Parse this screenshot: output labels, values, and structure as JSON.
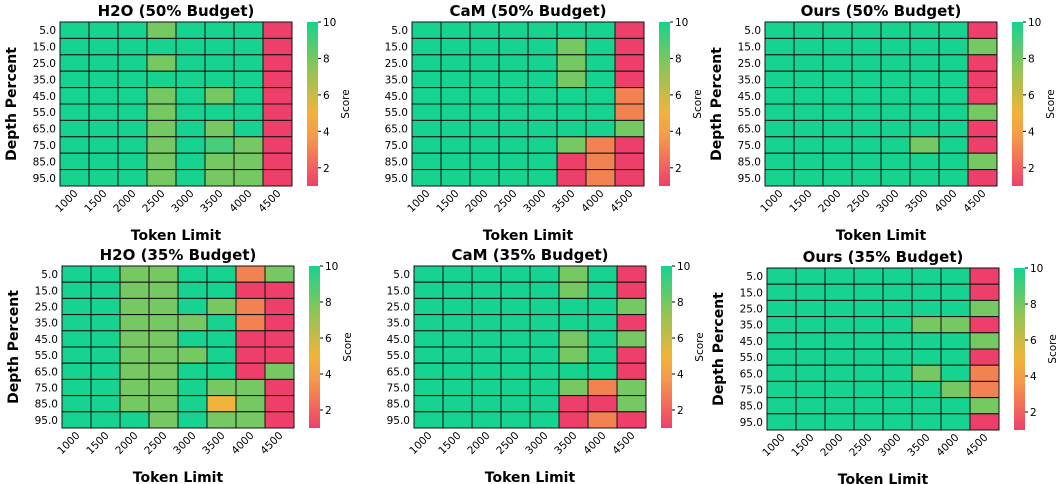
{
  "colors": {
    "low": "#ee3f6b",
    "mid_low": "#f59a4a",
    "mid": "#f0b43a",
    "mid_high": "#8ec556",
    "high": "#16d38f",
    "grid": "#111111"
  },
  "chart_data": [
    {
      "type": "heatmap",
      "title": "H2O (50% Budget)",
      "xlabel": "Token Limit",
      "ylabel": "Depth Percent",
      "x": [
        "1000",
        "1500",
        "2000",
        "2500",
        "3000",
        "3500",
        "4000",
        "4500"
      ],
      "y": [
        "5.0",
        "15.0",
        "25.0",
        "35.0",
        "45.0",
        "55.0",
        "65.0",
        "75.0",
        "85.0",
        "95.0"
      ],
      "colorbar": {
        "label": "Score",
        "range": [
          1,
          10
        ],
        "ticks": [
          "2",
          "4",
          "6",
          "8",
          "10"
        ]
      },
      "values": [
        [
          10,
          10,
          10,
          8,
          10,
          10,
          10,
          1
        ],
        [
          10,
          10,
          10,
          10,
          10,
          10,
          10,
          1
        ],
        [
          10,
          10,
          10,
          8,
          10,
          10,
          10,
          1
        ],
        [
          10,
          10,
          10,
          10,
          10,
          10,
          10,
          1
        ],
        [
          10,
          10,
          10,
          8,
          10,
          8,
          10,
          1
        ],
        [
          10,
          10,
          10,
          8,
          10,
          10,
          10,
          1
        ],
        [
          10,
          10,
          10,
          8,
          10,
          8,
          10,
          1
        ],
        [
          10,
          10,
          10,
          8,
          10,
          9,
          8,
          1
        ],
        [
          10,
          10,
          10,
          8,
          10,
          8,
          8,
          1
        ],
        [
          10,
          10,
          10,
          8,
          10,
          8,
          8,
          1
        ]
      ]
    },
    {
      "type": "heatmap",
      "title": "CaM (50% Budget)",
      "xlabel": "Token Limit",
      "ylabel": "",
      "x": [
        "1000",
        "1500",
        "2000",
        "2500",
        "3000",
        "3500",
        "4000",
        "4500"
      ],
      "y": [
        "5.0",
        "15.0",
        "25.0",
        "35.0",
        "45.0",
        "55.0",
        "65.0",
        "75.0",
        "85.0",
        "95.0"
      ],
      "colorbar": {
        "label": "Score",
        "range": [
          1,
          10
        ],
        "ticks": [
          "2",
          "4",
          "6",
          "8",
          "10"
        ]
      },
      "values": [
        [
          10,
          10,
          10,
          10,
          10,
          10,
          10,
          1
        ],
        [
          10,
          10,
          10,
          10,
          10,
          8,
          10,
          1
        ],
        [
          10,
          10,
          10,
          10,
          10,
          8,
          10,
          1
        ],
        [
          10,
          10,
          10,
          10,
          10,
          8,
          10,
          1
        ],
        [
          10,
          10,
          10,
          10,
          10,
          10,
          10,
          3
        ],
        [
          10,
          10,
          10,
          10,
          10,
          10,
          10,
          3
        ],
        [
          10,
          10,
          10,
          10,
          10,
          10,
          10,
          8
        ],
        [
          10,
          10,
          10,
          10,
          10,
          8,
          3,
          1
        ],
        [
          10,
          10,
          10,
          10,
          10,
          1,
          3,
          1
        ],
        [
          10,
          10,
          10,
          10,
          10,
          1,
          3,
          1
        ]
      ]
    },
    {
      "type": "heatmap",
      "title": "Ours (50% Budget)",
      "xlabel": "Token Limit",
      "ylabel": "Depth Percent",
      "x": [
        "1000",
        "1500",
        "2000",
        "2500",
        "3000",
        "3500",
        "4000",
        "4500"
      ],
      "y": [
        "5.0",
        "15.0",
        "25.0",
        "35.0",
        "45.0",
        "55.0",
        "65.0",
        "75.0",
        "85.0",
        "95.0"
      ],
      "colorbar": {
        "label": "Score",
        "range": [
          1,
          10
        ],
        "ticks": [
          "2",
          "4",
          "6",
          "8",
          "10"
        ]
      },
      "values": [
        [
          10,
          10,
          10,
          10,
          10,
          10,
          10,
          1
        ],
        [
          10,
          10,
          10,
          10,
          10,
          10,
          10,
          8
        ],
        [
          10,
          10,
          10,
          10,
          10,
          10,
          10,
          1
        ],
        [
          10,
          10,
          10,
          10,
          10,
          10,
          10,
          1
        ],
        [
          10,
          10,
          10,
          10,
          10,
          10,
          10,
          1
        ],
        [
          10,
          10,
          10,
          10,
          10,
          10,
          10,
          8
        ],
        [
          10,
          10,
          10,
          10,
          10,
          10,
          10,
          1
        ],
        [
          10,
          10,
          10,
          10,
          10,
          8,
          10,
          1
        ],
        [
          10,
          10,
          10,
          10,
          10,
          10,
          10,
          8
        ],
        [
          10,
          10,
          10,
          10,
          10,
          10,
          10,
          1
        ]
      ]
    },
    {
      "type": "heatmap",
      "title": "H2O (35% Budget)",
      "xlabel": "Token Limit",
      "ylabel": "Depth Percent",
      "x": [
        "1000",
        "1500",
        "2000",
        "2500",
        "3000",
        "3500",
        "4000",
        "4500"
      ],
      "y": [
        "5.0",
        "15.0",
        "25.0",
        "35.0",
        "45.0",
        "55.0",
        "65.0",
        "75.0",
        "85.0",
        "95.0"
      ],
      "colorbar": {
        "label": "Score",
        "range": [
          1,
          10
        ],
        "ticks": [
          "2",
          "4",
          "6",
          "8",
          "10"
        ]
      },
      "values": [
        [
          10,
          10,
          8,
          8,
          10,
          10,
          3,
          8
        ],
        [
          10,
          10,
          8,
          8,
          10,
          10,
          1,
          1
        ],
        [
          10,
          10,
          8,
          8,
          10,
          8,
          3,
          1
        ],
        [
          10,
          10,
          8,
          8,
          8,
          10,
          3,
          1
        ],
        [
          10,
          10,
          8,
          8,
          10,
          10,
          1,
          1
        ],
        [
          10,
          10,
          8,
          8,
          8,
          10,
          1,
          1
        ],
        [
          10,
          10,
          8,
          8,
          10,
          10,
          1,
          8
        ],
        [
          10,
          10,
          8,
          8,
          10,
          8,
          8,
          1
        ],
        [
          10,
          10,
          8,
          8,
          10,
          5,
          8,
          1
        ],
        [
          10,
          10,
          10,
          8,
          10,
          8,
          8,
          1
        ]
      ]
    },
    {
      "type": "heatmap",
      "title": "CaM (35% Budget)",
      "xlabel": "Token Limit",
      "ylabel": "",
      "x": [
        "1000",
        "1500",
        "2000",
        "2500",
        "3000",
        "3500",
        "4000",
        "4500"
      ],
      "y": [
        "5.0",
        "15.0",
        "25.0",
        "35.0",
        "45.0",
        "55.0",
        "65.0",
        "75.0",
        "85.0",
        "95.0"
      ],
      "colorbar": {
        "label": "Score",
        "range": [
          1,
          10
        ],
        "ticks": [
          "2",
          "4",
          "6",
          "8",
          "10"
        ]
      },
      "values": [
        [
          10,
          10,
          10,
          10,
          10,
          8,
          10,
          1
        ],
        [
          10,
          10,
          10,
          10,
          10,
          8,
          10,
          1
        ],
        [
          10,
          10,
          10,
          10,
          10,
          10,
          10,
          8
        ],
        [
          10,
          10,
          10,
          10,
          10,
          10,
          10,
          1
        ],
        [
          10,
          10,
          10,
          10,
          10,
          8,
          10,
          8
        ],
        [
          10,
          10,
          10,
          10,
          10,
          8,
          10,
          1
        ],
        [
          10,
          10,
          10,
          10,
          10,
          10,
          10,
          1
        ],
        [
          10,
          10,
          10,
          10,
          10,
          8,
          3,
          8
        ],
        [
          10,
          10,
          10,
          10,
          10,
          1,
          1,
          8
        ],
        [
          10,
          10,
          10,
          10,
          10,
          1,
          3,
          1
        ]
      ]
    },
    {
      "type": "heatmap",
      "title": "Ours (35% Budget)",
      "xlabel": "Token Limit",
      "ylabel": "Depth Percent",
      "x": [
        "1000",
        "1500",
        "2000",
        "2500",
        "3000",
        "3500",
        "4000",
        "4500"
      ],
      "y": [
        "5.0",
        "15.0",
        "25.0",
        "35.0",
        "45.0",
        "55.0",
        "65.0",
        "75.0",
        "85.0",
        "95.0"
      ],
      "colorbar": {
        "label": "Score",
        "range": [
          1,
          10
        ],
        "ticks": [
          "2",
          "4",
          "6",
          "8",
          "10"
        ]
      },
      "values": [
        [
          10,
          10,
          10,
          10,
          10,
          10,
          10,
          1
        ],
        [
          10,
          10,
          10,
          10,
          10,
          10,
          10,
          1
        ],
        [
          10,
          10,
          10,
          10,
          10,
          10,
          10,
          8
        ],
        [
          10,
          10,
          10,
          10,
          10,
          8,
          8,
          1
        ],
        [
          10,
          10,
          10,
          10,
          10,
          10,
          10,
          8
        ],
        [
          10,
          10,
          10,
          10,
          10,
          10,
          10,
          1
        ],
        [
          10,
          10,
          10,
          10,
          10,
          8,
          10,
          3
        ],
        [
          10,
          10,
          10,
          10,
          10,
          10,
          8,
          3
        ],
        [
          10,
          10,
          10,
          10,
          10,
          10,
          10,
          8
        ],
        [
          10,
          10,
          10,
          10,
          10,
          10,
          10,
          1
        ]
      ]
    }
  ]
}
